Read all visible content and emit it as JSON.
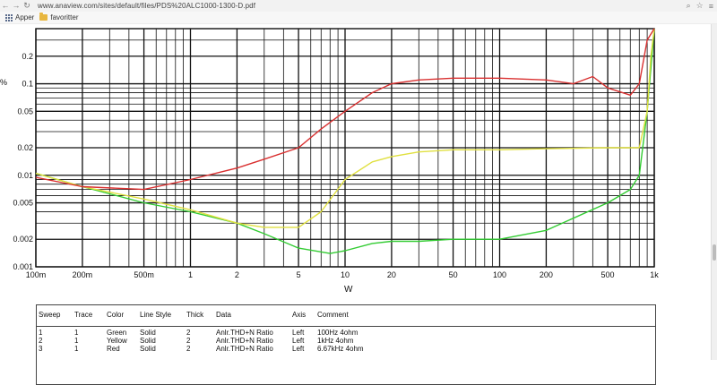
{
  "browser": {
    "back_glyph": "←",
    "forward_glyph": "→",
    "reload_glyph": "↻",
    "url": "www.anaview.com/sites/default/files/PDS%20ALC1000-1300-D.pdf",
    "zoom_glyph": "⌕",
    "star_glyph": "☆",
    "menu_glyph": "≡"
  },
  "bookmarks": {
    "apps_label": "Apper",
    "folder_label": "favoritter"
  },
  "chart": {
    "y_unit": "%",
    "x_title": "W",
    "x_ticks": [
      "100m",
      "200m",
      "500m",
      "1",
      "2",
      "5",
      "10",
      "20",
      "50",
      "100",
      "200",
      "500",
      "1k"
    ],
    "y_ticks": [
      "0.2",
      "0.1",
      "0.05",
      "0.02",
      "0.01",
      "0.005",
      "0.002",
      "0.001"
    ]
  },
  "chart_data": {
    "type": "line",
    "title": "",
    "xlabel": "W",
    "ylabel": "%",
    "x_scale": "log",
    "y_scale": "log",
    "xlim": [
      0.1,
      1000
    ],
    "ylim": [
      0.001,
      0.4
    ],
    "grid": true,
    "series": [
      {
        "name": "Green",
        "color": "#33cc33",
        "x": [
          0.1,
          0.2,
          0.5,
          1,
          2,
          3,
          5,
          8,
          10,
          15,
          20,
          30,
          50,
          100,
          200,
          500,
          700,
          800,
          900,
          1000
        ],
        "y": [
          0.0105,
          0.0075,
          0.005,
          0.004,
          0.003,
          0.0023,
          0.0016,
          0.0014,
          0.0015,
          0.0018,
          0.0019,
          0.0019,
          0.002,
          0.002,
          0.0025,
          0.005,
          0.007,
          0.01,
          0.05,
          0.4
        ]
      },
      {
        "name": "Yellow",
        "color": "#e0e040",
        "x": [
          0.1,
          0.2,
          0.5,
          1,
          2,
          3,
          5,
          7,
          10,
          15,
          20,
          30,
          50,
          100,
          200,
          500,
          800,
          900,
          950,
          1000
        ],
        "y": [
          0.0105,
          0.0075,
          0.0055,
          0.0042,
          0.003,
          0.0027,
          0.0027,
          0.004,
          0.009,
          0.014,
          0.016,
          0.018,
          0.019,
          0.019,
          0.0195,
          0.02,
          0.02,
          0.05,
          0.2,
          0.4
        ]
      },
      {
        "name": "Red",
        "color": "#d93030",
        "x": [
          0.1,
          0.2,
          0.5,
          1,
          2,
          3,
          5,
          7,
          10,
          15,
          20,
          30,
          50,
          100,
          200,
          300,
          400,
          500,
          700,
          800,
          900,
          1000
        ],
        "y": [
          0.0095,
          0.0075,
          0.007,
          0.009,
          0.012,
          0.015,
          0.02,
          0.032,
          0.05,
          0.08,
          0.1,
          0.11,
          0.115,
          0.115,
          0.11,
          0.1,
          0.12,
          0.09,
          0.075,
          0.1,
          0.3,
          0.4
        ]
      }
    ]
  },
  "legend": {
    "headers": [
      "Sweep",
      "Trace",
      "Color",
      "Line Style",
      "Thick",
      "Data",
      "Axis",
      "Comment"
    ],
    "rows": [
      [
        "1",
        "1",
        "Green",
        "Solid",
        "2",
        "Anlr.THD+N Ratio",
        "Left",
        "100Hz 4ohm"
      ],
      [
        "2",
        "1",
        "Yellow",
        "Solid",
        "2",
        "Anlr.THD+N Ratio",
        "Left",
        "1kHz 4ohm"
      ],
      [
        "3",
        "1",
        "Red",
        "Solid",
        "2",
        "Anlr.THD+N Ratio",
        "Left",
        "6.67kHz 4ohm"
      ]
    ]
  }
}
